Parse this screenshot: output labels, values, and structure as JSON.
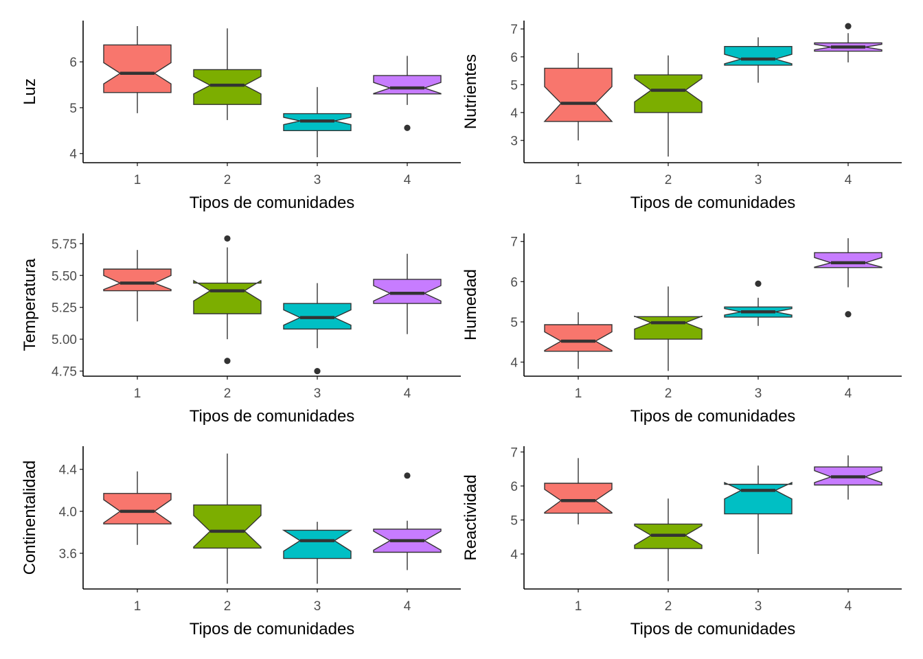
{
  "chart_data": [
    {
      "type": "boxplot",
      "notched": true,
      "xlabel": "Tipos de comunidades",
      "ylabel": "Luz",
      "categories": [
        "1",
        "2",
        "3",
        "4"
      ],
      "colors": [
        "#F8766D",
        "#7CAE00",
        "#00BFC4",
        "#C77CFF"
      ],
      "ylim": [
        3.8,
        6.9
      ],
      "yticks": [
        4,
        5,
        6
      ],
      "ytick_labels": [
        "4",
        "5",
        "6"
      ],
      "boxes": [
        {
          "whisker_low": 4.88,
          "q1": 5.33,
          "median": 5.75,
          "q3": 6.37,
          "whisker_high": 6.78,
          "notch_low": 5.52,
          "notch_high": 5.98,
          "outliers": []
        },
        {
          "whisker_low": 4.73,
          "q1": 5.07,
          "median": 5.49,
          "q3": 5.83,
          "whisker_high": 6.73,
          "notch_low": 5.3,
          "notch_high": 5.68,
          "outliers": []
        },
        {
          "whisker_low": 3.92,
          "q1": 4.5,
          "median": 4.71,
          "q3": 4.87,
          "whisker_high": 5.45,
          "notch_low": 4.63,
          "notch_high": 4.79,
          "outliers": []
        },
        {
          "whisker_low": 5.06,
          "q1": 5.3,
          "median": 5.43,
          "q3": 5.7,
          "whisker_high": 6.13,
          "notch_low": 5.31,
          "notch_high": 5.55,
          "outliers": [
            4.56
          ]
        }
      ]
    },
    {
      "type": "boxplot",
      "notched": true,
      "xlabel": "Tipos de comunidades",
      "ylabel": "Nutrientes",
      "categories": [
        "1",
        "2",
        "3",
        "4"
      ],
      "colors": [
        "#F8766D",
        "#7CAE00",
        "#00BFC4",
        "#C77CFF"
      ],
      "ylim": [
        2.2,
        7.3
      ],
      "yticks": [
        3,
        4,
        5,
        6,
        7
      ],
      "ytick_labels": [
        "3",
        "4",
        "5",
        "6",
        "7"
      ],
      "boxes": [
        {
          "whisker_low": 3.0,
          "q1": 3.68,
          "median": 4.33,
          "q3": 5.59,
          "whisker_high": 6.14,
          "notch_low": 3.68,
          "notch_high": 4.93,
          "outliers": []
        },
        {
          "whisker_low": 2.42,
          "q1": 4.0,
          "median": 4.8,
          "q3": 5.35,
          "whisker_high": 6.05,
          "notch_low": 4.38,
          "notch_high": 5.22,
          "outliers": []
        },
        {
          "whisker_low": 5.07,
          "q1": 5.7,
          "median": 5.92,
          "q3": 6.37,
          "whisker_high": 6.7,
          "notch_low": 5.75,
          "notch_high": 6.09,
          "outliers": []
        },
        {
          "whisker_low": 5.8,
          "q1": 6.2,
          "median": 6.35,
          "q3": 6.5,
          "whisker_high": 6.85,
          "notch_low": 6.25,
          "notch_high": 6.45,
          "outliers": [
            7.1
          ]
        }
      ]
    },
    {
      "type": "boxplot",
      "notched": true,
      "xlabel": "Tipos de comunidades",
      "ylabel": "Temperatura",
      "categories": [
        "1",
        "2",
        "3",
        "4"
      ],
      "colors": [
        "#F8766D",
        "#7CAE00",
        "#00BFC4",
        "#C77CFF"
      ],
      "ylim": [
        4.71,
        5.83
      ],
      "yticks": [
        4.75,
        5.0,
        5.25,
        5.5,
        5.75
      ],
      "ytick_labels": [
        "4.75",
        "5.00",
        "5.25",
        "5.50",
        "5.75"
      ],
      "boxes": [
        {
          "whisker_low": 5.14,
          "q1": 5.38,
          "median": 5.44,
          "q3": 5.55,
          "whisker_high": 5.7,
          "notch_low": 5.39,
          "notch_high": 5.5,
          "outliers": []
        },
        {
          "whisker_low": 5.0,
          "q1": 5.2,
          "median": 5.38,
          "q3": 5.44,
          "whisker_high": 5.72,
          "notch_low": 5.3,
          "notch_high": 5.46,
          "outliers": [
            5.79,
            4.83
          ]
        },
        {
          "whisker_low": 4.93,
          "q1": 5.08,
          "median": 5.17,
          "q3": 5.28,
          "whisker_high": 5.44,
          "notch_low": 5.11,
          "notch_high": 5.23,
          "outliers": [
            4.75
          ]
        },
        {
          "whisker_low": 5.04,
          "q1": 5.28,
          "median": 5.36,
          "q3": 5.47,
          "whisker_high": 5.67,
          "notch_low": 5.3,
          "notch_high": 5.42,
          "outliers": []
        }
      ]
    },
    {
      "type": "boxplot",
      "notched": true,
      "xlabel": "Tipos de comunidades",
      "ylabel": "Humedad",
      "categories": [
        "1",
        "2",
        "3",
        "4"
      ],
      "colors": [
        "#F8766D",
        "#7CAE00",
        "#00BFC4",
        "#C77CFF"
      ],
      "ylim": [
        3.65,
        7.2
      ],
      "yticks": [
        4,
        5,
        6,
        7
      ],
      "ytick_labels": [
        "4",
        "5",
        "6",
        "7"
      ],
      "boxes": [
        {
          "whisker_low": 3.83,
          "q1": 4.27,
          "median": 4.52,
          "q3": 4.93,
          "whisker_high": 5.24,
          "notch_low": 4.29,
          "notch_high": 4.75,
          "outliers": []
        },
        {
          "whisker_low": 3.78,
          "q1": 4.57,
          "median": 4.98,
          "q3": 5.13,
          "whisker_high": 5.88,
          "notch_low": 4.82,
          "notch_high": 5.14,
          "outliers": []
        },
        {
          "whisker_low": 4.9,
          "q1": 5.12,
          "median": 5.25,
          "q3": 5.37,
          "whisker_high": 5.6,
          "notch_low": 5.17,
          "notch_high": 5.33,
          "outliers": [
            5.95
          ]
        },
        {
          "whisker_low": 5.86,
          "q1": 6.35,
          "median": 6.47,
          "q3": 6.72,
          "whisker_high": 7.08,
          "notch_low": 6.36,
          "notch_high": 6.6,
          "outliers": [
            5.19
          ]
        }
      ]
    },
    {
      "type": "boxplot",
      "notched": true,
      "xlabel": "Tipos de comunidades",
      "ylabel": "Continentalidad",
      "categories": [
        "1",
        "2",
        "3",
        "4"
      ],
      "colors": [
        "#F8766D",
        "#7CAE00",
        "#00BFC4",
        "#C77CFF"
      ],
      "ylim": [
        3.26,
        4.62
      ],
      "yticks": [
        3.6,
        4.0,
        4.4
      ],
      "ytick_labels": [
        "3.6",
        "4.0",
        "4.4"
      ],
      "boxes": [
        {
          "whisker_low": 3.68,
          "q1": 3.88,
          "median": 4.0,
          "q3": 4.17,
          "whisker_high": 4.38,
          "notch_low": 3.89,
          "notch_high": 4.11,
          "outliers": []
        },
        {
          "whisker_low": 3.31,
          "q1": 3.65,
          "median": 3.81,
          "q3": 4.06,
          "whisker_high": 4.55,
          "notch_low": 3.66,
          "notch_high": 3.96,
          "outliers": []
        },
        {
          "whisker_low": 3.31,
          "q1": 3.55,
          "median": 3.72,
          "q3": 3.82,
          "whisker_high": 3.9,
          "notch_low": 3.62,
          "notch_high": 3.82,
          "outliers": []
        },
        {
          "whisker_low": 3.44,
          "q1": 3.61,
          "median": 3.72,
          "q3": 3.83,
          "whisker_high": 3.91,
          "notch_low": 3.63,
          "notch_high": 3.81,
          "outliers": [
            4.34
          ]
        }
      ]
    },
    {
      "type": "boxplot",
      "notched": true,
      "xlabel": "Tipos de comunidades",
      "ylabel": "Reactividad",
      "categories": [
        "1",
        "2",
        "3",
        "4"
      ],
      "colors": [
        "#F8766D",
        "#7CAE00",
        "#00BFC4",
        "#C77CFF"
      ],
      "ylim": [
        2.97,
        7.17
      ],
      "yticks": [
        4,
        5,
        6,
        7
      ],
      "ytick_labels": [
        "4",
        "5",
        "6",
        "7"
      ],
      "boxes": [
        {
          "whisker_low": 4.87,
          "q1": 5.2,
          "median": 5.57,
          "q3": 6.08,
          "whisker_high": 6.82,
          "notch_low": 5.22,
          "notch_high": 5.9,
          "outliers": []
        },
        {
          "whisker_low": 3.2,
          "q1": 4.16,
          "median": 4.55,
          "q3": 4.88,
          "whisker_high": 5.63,
          "notch_low": 4.26,
          "notch_high": 4.83,
          "outliers": []
        },
        {
          "whisker_low": 4.0,
          "q1": 5.18,
          "median": 5.87,
          "q3": 6.05,
          "whisker_high": 6.6,
          "notch_low": 5.62,
          "notch_high": 6.1,
          "outliers": []
        },
        {
          "whisker_low": 5.6,
          "q1": 6.03,
          "median": 6.27,
          "q3": 6.56,
          "whisker_high": 6.9,
          "notch_low": 6.1,
          "notch_high": 6.45,
          "outliers": []
        }
      ]
    }
  ]
}
